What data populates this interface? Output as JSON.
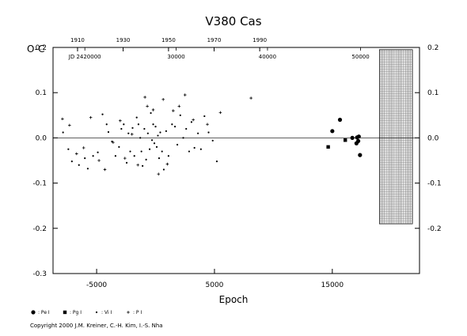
{
  "chart_data": {
    "type": "scatter",
    "title": "V380  Cas",
    "ylabel": "O-C",
    "xlabel": "Epoch",
    "xlim": [
      -8700,
      22400
    ],
    "ylim": [
      -0.3,
      0.2
    ],
    "grid": false,
    "x_ticks": [
      {
        "value": -5000,
        "label": "-5000"
      },
      {
        "value": 5000,
        "label": "5000"
      },
      {
        "value": 15000,
        "label": "15000"
      }
    ],
    "y_ticks_left": [
      {
        "value": 0.2,
        "label": "0.2"
      },
      {
        "value": 0.1,
        "label": "0.1"
      },
      {
        "value": 0.0,
        "label": "0.0"
      },
      {
        "value": -0.1,
        "label": "-0.1"
      },
      {
        "value": -0.2,
        "label": "-0.2"
      },
      {
        "value": -0.3,
        "label": "-0.3"
      }
    ],
    "y_ticks_right": [
      {
        "value": 0.2,
        "label": "0.2"
      },
      {
        "value": 0.1,
        "label": "0.1"
      },
      {
        "value": 0.0,
        "label": "0.0"
      },
      {
        "value": -0.1,
        "label": "-0.1"
      },
      {
        "value": -0.2,
        "label": "-0.2"
      }
    ],
    "top_year_ticks": [
      {
        "epoch": -6620,
        "label": "1910"
      },
      {
        "epoch": -2750,
        "label": "1930"
      },
      {
        "epoch": 1100,
        "label": "1950"
      },
      {
        "epoch": 4970,
        "label": "1970"
      },
      {
        "epoch": 8840,
        "label": "1990"
      }
    ],
    "top_jd_labels": [
      {
        "epoch": -6000,
        "label": "JD 2420000"
      },
      {
        "epoch": 1750,
        "label": "30000"
      },
      {
        "epoch": 9500,
        "label": "40000"
      },
      {
        "epoch": 17400,
        "label": "50000"
      }
    ],
    "legend": [
      {
        "symbol": "filled-circle",
        "label": ": Pe I"
      },
      {
        "symbol": "filled-square",
        "label": ": Pg I"
      },
      {
        "symbol": "small-dot",
        "label": ": Vi I"
      },
      {
        "symbol": "plus",
        "label": ": P I"
      }
    ],
    "future_band": {
      "x_start": 19000,
      "x_end": 21800,
      "y_top": 0.195,
      "y_bottom": -0.19
    },
    "series": [
      {
        "name": "Vi I",
        "symbol": "small-dot",
        "points": [
          [
            -7850,
            0.012
          ],
          [
            -7400,
            -0.025
          ],
          [
            -7100,
            -0.052
          ],
          [
            -6500,
            -0.06
          ],
          [
            -6000,
            -0.045
          ],
          [
            -5750,
            -0.068
          ],
          [
            -5300,
            -0.04
          ],
          [
            -4900,
            -0.032
          ],
          [
            -4500,
            0.052
          ],
          [
            -4150,
            0.03
          ],
          [
            -4000,
            0.013
          ],
          [
            -3700,
            -0.008
          ],
          [
            -3400,
            -0.04
          ],
          [
            -3100,
            -0.02
          ],
          [
            -2900,
            0.02
          ],
          [
            -2700,
            0.03
          ],
          [
            -2450,
            -0.055
          ],
          [
            -2300,
            0.01
          ],
          [
            -2150,
            -0.03
          ],
          [
            -1950,
            0.022
          ],
          [
            -1800,
            -0.04
          ],
          [
            -1600,
            0.045
          ],
          [
            -1450,
            0.03
          ],
          [
            -1300,
            0.0
          ],
          [
            -1200,
            -0.03
          ],
          [
            -1100,
            -0.062
          ],
          [
            -950,
            0.02
          ],
          [
            -800,
            -0.048
          ],
          [
            -650,
            0.01
          ],
          [
            -500,
            -0.025
          ],
          [
            -400,
            0.055
          ],
          [
            -300,
            -0.005
          ],
          [
            -200,
            0.03
          ],
          [
            -100,
            -0.012
          ],
          [
            0,
            0.025
          ],
          [
            100,
            -0.02
          ],
          [
            200,
            0.005
          ],
          [
            300,
            -0.045
          ],
          [
            400,
            0.012
          ],
          [
            550,
            -0.03
          ],
          [
            700,
            -0.07
          ],
          [
            900,
            0.015
          ],
          [
            1100,
            -0.04
          ],
          [
            1400,
            0.03
          ],
          [
            1650,
            0.025
          ],
          [
            1850,
            -0.015
          ],
          [
            2100,
            0.05
          ],
          [
            2350,
            0.0
          ],
          [
            2600,
            0.02
          ],
          [
            2850,
            -0.03
          ],
          [
            3050,
            0.035
          ],
          [
            3300,
            -0.022
          ],
          [
            3600,
            0.01
          ],
          [
            3850,
            -0.025
          ],
          [
            4150,
            0.048
          ],
          [
            4500,
            0.012
          ],
          [
            4850,
            -0.006
          ],
          [
            5200,
            -0.052
          ]
        ]
      },
      {
        "name": "P I",
        "symbol": "plus",
        "points": [
          [
            -7900,
            0.042
          ],
          [
            -7300,
            0.028
          ],
          [
            -6700,
            -0.035
          ],
          [
            -6100,
            -0.022
          ],
          [
            -5500,
            0.045
          ],
          [
            -4800,
            -0.05
          ],
          [
            -4300,
            -0.07
          ],
          [
            -3600,
            -0.01
          ],
          [
            -3000,
            0.038
          ],
          [
            -2600,
            -0.045
          ],
          [
            -2000,
            0.008
          ],
          [
            -1500,
            -0.06
          ],
          [
            -900,
            0.09
          ],
          [
            -700,
            0.07
          ],
          [
            -200,
            0.062
          ],
          [
            250,
            -0.08
          ],
          [
            650,
            0.085
          ],
          [
            1000,
            -0.058
          ],
          [
            1500,
            0.06
          ],
          [
            2000,
            0.07
          ],
          [
            2500,
            0.095
          ],
          [
            3200,
            0.04
          ],
          [
            4400,
            0.03
          ],
          [
            5500,
            0.056
          ],
          [
            8100,
            0.088
          ]
        ]
      },
      {
        "name": "Pe I",
        "symbol": "filled-circle",
        "points": [
          [
            15000,
            0.015
          ],
          [
            15650,
            0.04
          ],
          [
            16700,
            0.0
          ],
          [
            17050,
            -0.012
          ],
          [
            17100,
            0.001
          ],
          [
            17200,
            -0.007
          ],
          [
            17250,
            0.003
          ],
          [
            17350,
            -0.038
          ]
        ]
      },
      {
        "name": "Pg I",
        "symbol": "filled-square",
        "points": [
          [
            14650,
            -0.02
          ],
          [
            16100,
            -0.005
          ]
        ]
      }
    ]
  },
  "copyright": "Copyright 2000 J.M. Kreiner, C.-H. Kim, I.-S. Nha"
}
